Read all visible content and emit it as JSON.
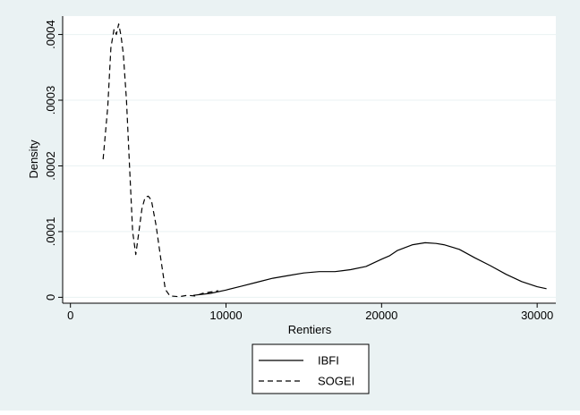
{
  "chart_data": {
    "type": "line",
    "title": "",
    "xlabel": "Rentiers",
    "ylabel": "Density",
    "xlim": [
      -500,
      31200
    ],
    "ylim": [
      -9e-06,
      0.000428
    ],
    "x_ticks": [
      0,
      10000,
      20000,
      30000
    ],
    "x_tick_labels": [
      "0",
      "10000",
      "20000",
      "30000"
    ],
    "y_ticks": [
      0,
      0.0001,
      0.0002,
      0.0003,
      0.0004
    ],
    "y_tick_labels": [
      "0",
      ".0001",
      ".0002",
      ".0003",
      ".0004"
    ],
    "grid": true,
    "legend_position": "bottom",
    "colors": {
      "page_background": "#eaf2f3",
      "plot_background": "#ffffff",
      "gridline": "#eaf2f3",
      "line": "#000000"
    },
    "series": [
      {
        "name": "IBFI",
        "dash": "solid",
        "x": [
          7900,
          9000,
          10000,
          11000,
          12000,
          13000,
          14000,
          15000,
          16000,
          17000,
          18000,
          19000,
          20000,
          20500,
          21000,
          22000,
          22800,
          23500,
          24000,
          25000,
          26000,
          27000,
          28000,
          29000,
          30000,
          30600
        ],
        "y": [
          3e-06,
          6e-06,
          1.1e-05,
          1.7e-05,
          2.3e-05,
          2.9e-05,
          3.3e-05,
          3.7e-05,
          3.9e-05,
          3.9e-05,
          4.2e-05,
          4.7e-05,
          5.8e-05,
          6.3e-05,
          7.1e-05,
          8e-05,
          8.3e-05,
          8.2e-05,
          8e-05,
          7.3e-05,
          6e-05,
          4.8e-05,
          3.5e-05,
          2.4e-05,
          1.6e-05,
          1.3e-05
        ]
      },
      {
        "name": "SOGEI",
        "dash": "dashed",
        "x": [
          2100,
          2400,
          2600,
          2800,
          2950,
          3100,
          3250,
          3400,
          3600,
          3800,
          4000,
          4200,
          4400,
          4600,
          4800,
          5000,
          5200,
          5500,
          5800,
          6100,
          6400,
          7000,
          7500,
          8000,
          8500,
          9000,
          9500
        ],
        "y": [
          0.00021,
          0.00029,
          0.00038,
          0.000408,
          0.0004,
          0.000416,
          0.000398,
          0.00037,
          0.0003,
          0.0002,
          0.0001,
          6.5e-05,
          0.0001,
          0.000135,
          0.000152,
          0.000154,
          0.000148,
          0.00011,
          6e-05,
          1.2e-05,
          2e-06,
          1e-06,
          3e-06,
          2e-06,
          6e-06,
          8e-06,
          1e-05
        ]
      }
    ]
  }
}
